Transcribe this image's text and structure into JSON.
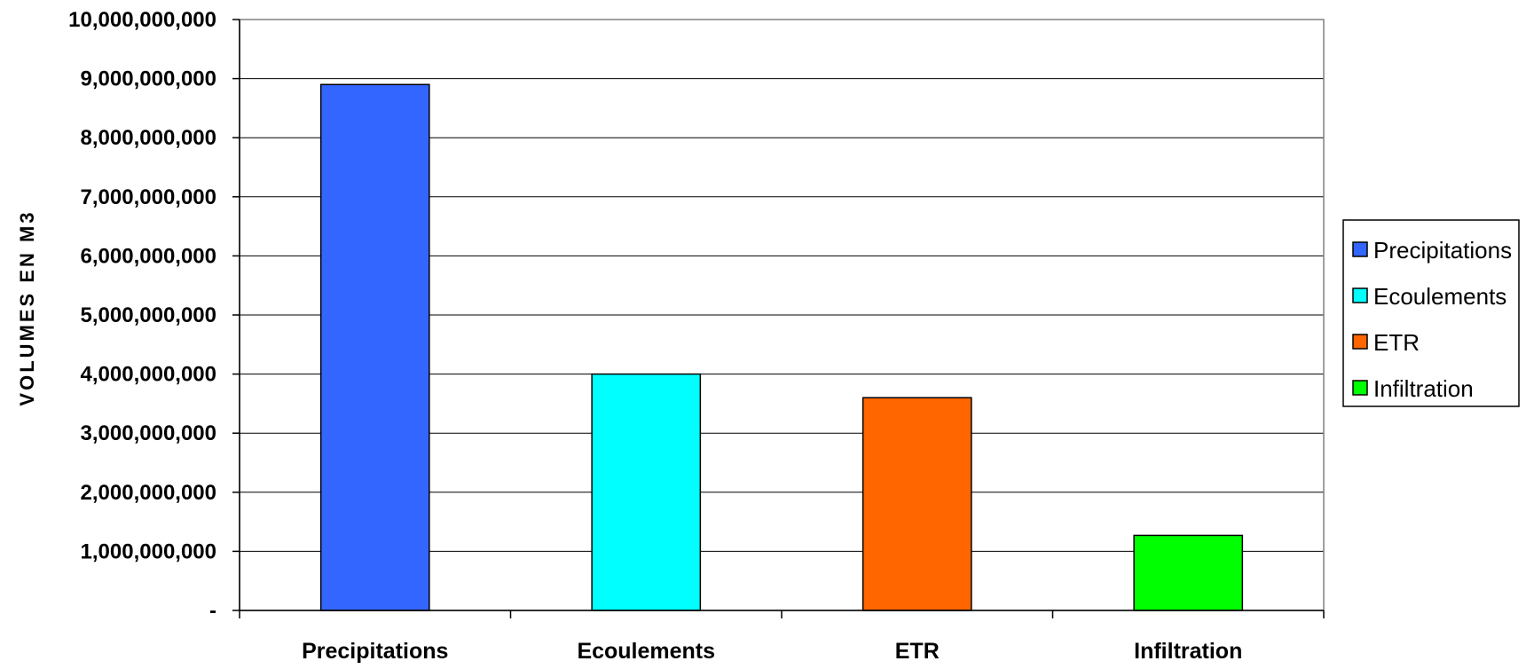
{
  "chart_data": {
    "type": "bar",
    "categories": [
      "Precipitations",
      "Ecoulements",
      "ETR",
      "Infiltration"
    ],
    "values": [
      8900000000,
      4000000000,
      3600000000,
      1270000000
    ],
    "colors": [
      "#3366ff",
      "#00ffff",
      "#ff6600",
      "#00ff00"
    ],
    "title": "",
    "xlabel": "",
    "ylabel": "VOLUMES EN M3",
    "ylim": [
      0,
      10000000000
    ],
    "y_ticks": [
      0,
      1000000000,
      2000000000,
      3000000000,
      4000000000,
      5000000000,
      6000000000,
      7000000000,
      8000000000,
      9000000000,
      10000000000
    ],
    "y_tick_labels": [
      "-",
      "1,000,000,000",
      "2,000,000,000",
      "3,000,000,000",
      "4,000,000,000",
      "5,000,000,000",
      "6,000,000,000",
      "7,000,000,000",
      "8,000,000,000",
      "9,000,000,000",
      "10,000,000,000"
    ],
    "grid": true,
    "legend": {
      "position": "right",
      "entries": [
        "Precipitations",
        "Ecoulements",
        "ETR",
        "Infiltration"
      ]
    }
  }
}
